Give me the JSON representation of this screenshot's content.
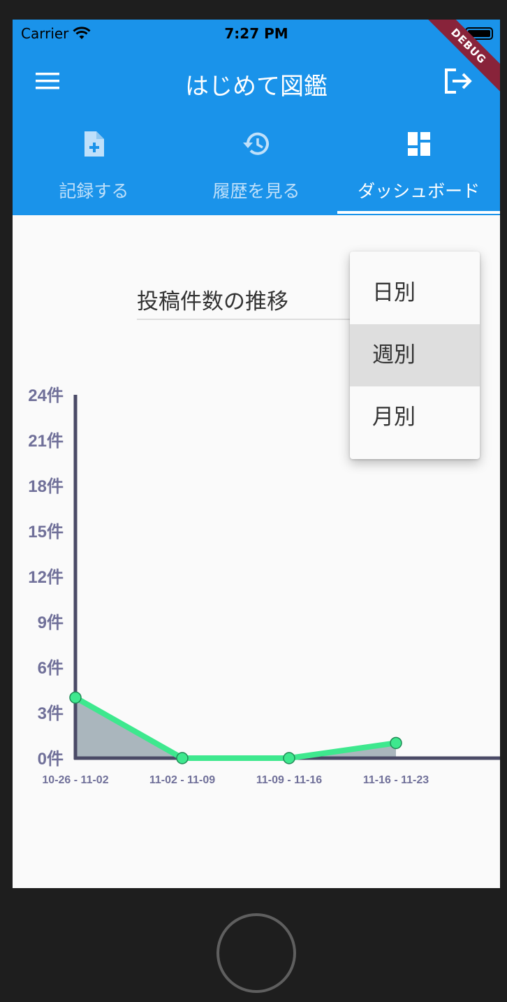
{
  "status_bar": {
    "carrier": "Carrier",
    "time": "7:27 PM"
  },
  "app_bar": {
    "title": "はじめて図鑑",
    "debug_banner": "DEBUG"
  },
  "tabs": [
    {
      "label": "記録する",
      "icon": "note-add-icon",
      "active": false
    },
    {
      "label": "履歴を見る",
      "icon": "history-icon",
      "active": false
    },
    {
      "label": "ダッシュボード",
      "icon": "dashboard-icon",
      "active": true
    }
  ],
  "dropdown": {
    "value": "投稿件数の推移"
  },
  "period_menu": {
    "items": [
      "日別",
      "週別",
      "月別"
    ],
    "selected": "週別"
  },
  "colors": {
    "primary": "#1a93ea",
    "line": "#3ee88e",
    "area": "#aab6bd",
    "axis": "#4a4a66",
    "tick": "#707099"
  },
  "chart_data": {
    "type": "area",
    "categories": [
      "10-26 - 11-02",
      "11-02 - 11-09",
      "11-09 - 11-16",
      "11-16 - 11-23"
    ],
    "values": [
      4,
      0,
      0,
      1
    ],
    "ylim": [
      0,
      24
    ],
    "yticks": [
      "0件",
      "3件",
      "6件",
      "9件",
      "12件",
      "15件",
      "18件",
      "21件",
      "24件"
    ],
    "ytick_values": [
      0,
      3,
      6,
      9,
      12,
      15,
      18,
      21,
      24
    ]
  }
}
